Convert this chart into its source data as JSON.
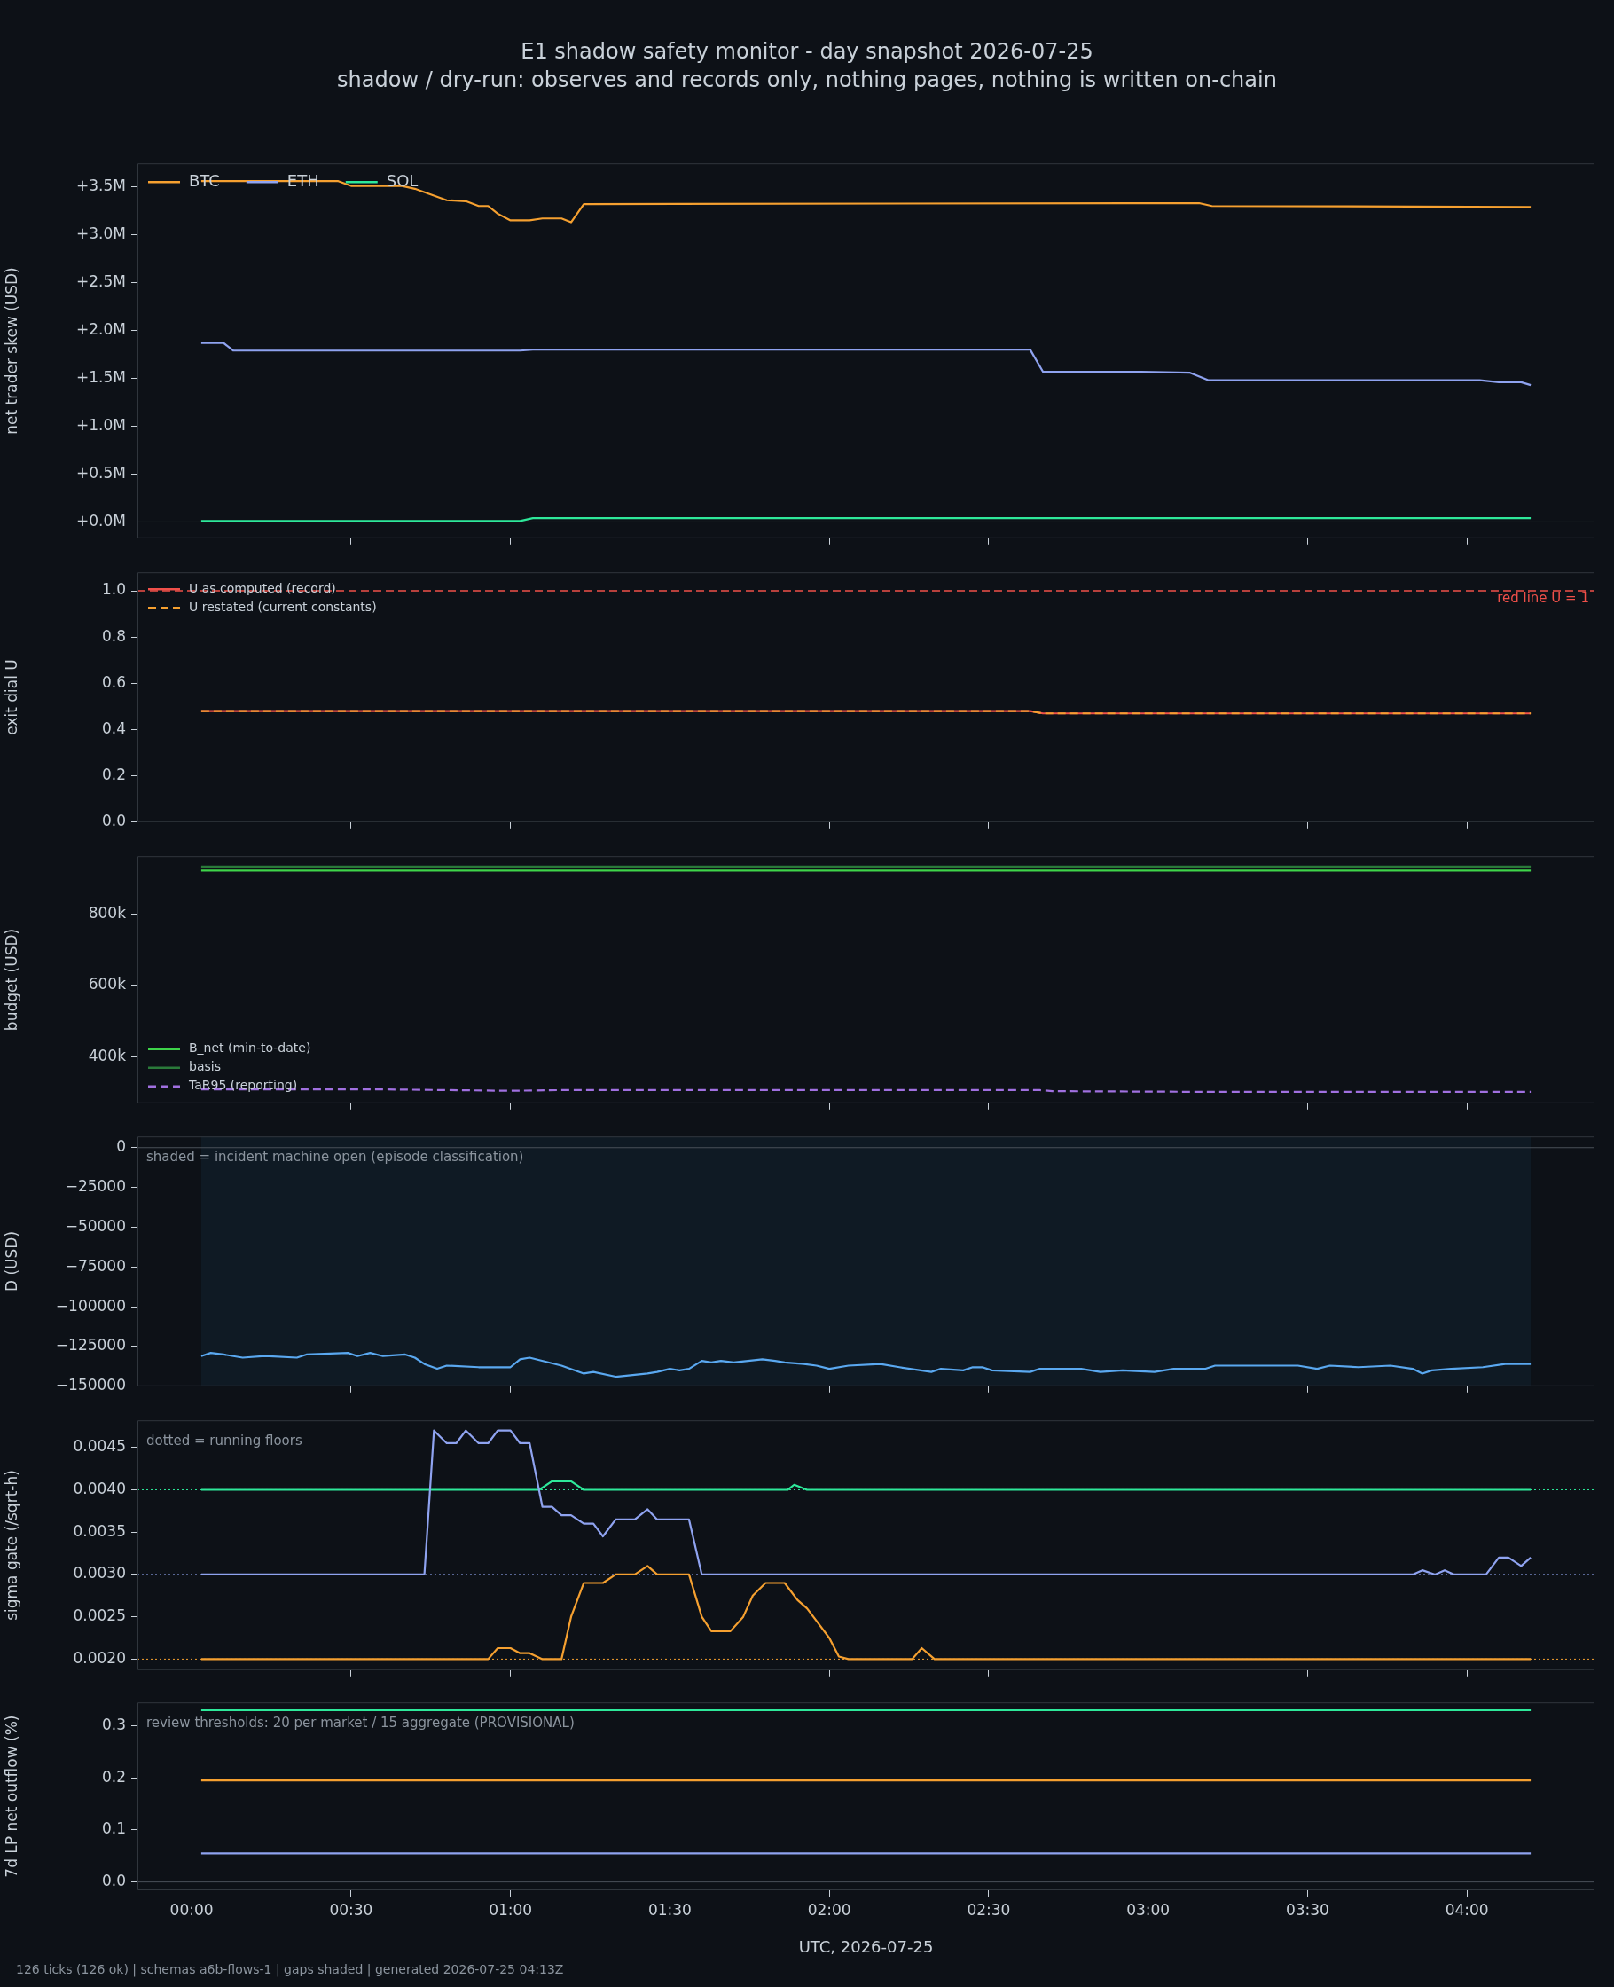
{
  "chart_data": [
    {
      "type": "line",
      "title": "E1 shadow safety monitor - day snapshot 2026-07-25",
      "subtitle": "shadow / dry-run: observes and records only, nothing pages, nothing is written on-chain",
      "ylabel": "net trader skew (USD)",
      "xlim": [
        -0.17,
        4.4
      ],
      "xticks": [
        {
          "value": 0,
          "label": null
        },
        {
          "value": 0.5,
          "label": null
        },
        {
          "value": 1,
          "label": null
        },
        {
          "value": 1.5,
          "label": null
        },
        {
          "value": 2,
          "label": null
        },
        {
          "value": 2.5,
          "label": null
        },
        {
          "value": 3,
          "label": null
        },
        {
          "value": 3.5,
          "label": null
        },
        {
          "value": 4,
          "label": null
        }
      ],
      "ylim": [
        -0.17,
        3.745
      ],
      "yticks": [
        {
          "value": 0,
          "label": "+0.0M"
        },
        {
          "value": 0.5,
          "label": "+0.5M"
        },
        {
          "value": 1,
          "label": "+1.0M"
        },
        {
          "value": 1.5,
          "label": "+1.5M"
        },
        {
          "value": 2,
          "label": "+2.0M"
        },
        {
          "value": 2.5,
          "label": "+2.5M"
        },
        {
          "value": 3,
          "label": "+3.0M"
        },
        {
          "value": 3.5,
          "label": "+3.5M"
        }
      ],
      "tick_labels": "y",
      "legend": "top left",
      "ref_lines": [
        {
          "axis": "y",
          "value": 0,
          "color": "#4a5059"
        }
      ],
      "series": [
        {
          "name": "BTC",
          "color": "#f5a030",
          "x": [
            0.03,
            0.46,
            0.5,
            0.66,
            0.7,
            0.75,
            0.8,
            0.86,
            0.9,
            0.93,
            0.96,
            1.0,
            1.06,
            1.1,
            1.16,
            1.19,
            1.23,
            3.16,
            3.2,
            4.2
          ],
          "values": [
            3.56,
            3.56,
            3.51,
            3.51,
            3.48,
            3.42,
            3.36,
            3.35,
            3.3,
            3.3,
            3.22,
            3.15,
            3.15,
            3.17,
            3.17,
            3.13,
            3.32,
            3.33,
            3.3,
            3.29
          ]
        },
        {
          "name": "ETH",
          "color": "#8fa3f0",
          "x": [
            0.03,
            0.1,
            0.13,
            1.03,
            1.07,
            2.63,
            2.67,
            2.98,
            3.13,
            3.19,
            4.04,
            4.1,
            4.17,
            4.2
          ],
          "values": [
            1.87,
            1.87,
            1.79,
            1.79,
            1.8,
            1.8,
            1.57,
            1.57,
            1.56,
            1.48,
            1.48,
            1.46,
            1.46,
            1.43
          ]
        },
        {
          "name": "SOL",
          "color": "#2ee89a",
          "x": [
            0.03,
            1.03,
            1.07,
            4.2
          ],
          "values": [
            0.01,
            0.01,
            0.04,
            0.04
          ]
        }
      ]
    },
    {
      "type": "line",
      "ylabel": "exit dial U",
      "xlim": [
        -0.17,
        4.4
      ],
      "xticks": [
        {
          "value": 0,
          "label": null
        },
        {
          "value": 0.5,
          "label": null
        },
        {
          "value": 1,
          "label": null
        },
        {
          "value": 1.5,
          "label": null
        },
        {
          "value": 2,
          "label": null
        },
        {
          "value": 2.5,
          "label": null
        },
        {
          "value": 3,
          "label": null
        },
        {
          "value": 3.5,
          "label": null
        },
        {
          "value": 4,
          "label": null
        }
      ],
      "ylim": [
        0,
        1.08
      ],
      "yticks": [
        {
          "value": 0,
          "label": "0.0"
        },
        {
          "value": 0.2,
          "label": "0.2"
        },
        {
          "value": 0.4,
          "label": "0.4"
        },
        {
          "value": 0.6,
          "label": "0.6"
        },
        {
          "value": 0.8,
          "label": "0.8"
        },
        {
          "value": 1,
          "label": "1.0"
        }
      ],
      "tick_labels": "y",
      "legend": "top left",
      "ref_lines": [
        {
          "axis": "y",
          "value": 1,
          "label": "red line U = 1",
          "color": "#f0504a",
          "line_style": "dashed"
        }
      ],
      "series": [
        {
          "name": "U as computed (record)",
          "color": "#f0504a",
          "x": [
            0.03,
            0.1,
            2.63,
            2.67,
            4.2
          ],
          "values": [
            0.48,
            0.48,
            0.48,
            0.47,
            0.47
          ]
        },
        {
          "name": "U restated (current constants)",
          "color": "#f5a030",
          "line_style": "dashed",
          "x": [
            0.03,
            0.1,
            2.63,
            2.67,
            4.2
          ],
          "values": [
            0.48,
            0.48,
            0.48,
            0.47,
            0.47
          ]
        }
      ]
    },
    {
      "type": "line",
      "ylabel": "budget (USD)",
      "xlim": [
        -0.17,
        4.4
      ],
      "xticks": [
        {
          "value": 0,
          "label": null
        },
        {
          "value": 0.5,
          "label": null
        },
        {
          "value": 1,
          "label": null
        },
        {
          "value": 1.5,
          "label": null
        },
        {
          "value": 2,
          "label": null
        },
        {
          "value": 2.5,
          "label": null
        },
        {
          "value": 3,
          "label": null
        },
        {
          "value": 3.5,
          "label": null
        },
        {
          "value": 4,
          "label": null
        }
      ],
      "ylim": [
        269,
        962
      ],
      "yticks": [
        {
          "value": 400,
          "label": "400k"
        },
        {
          "value": 600,
          "label": "600k"
        },
        {
          "value": 800,
          "label": "800k"
        }
      ],
      "tick_labels": "y",
      "legend": "bottom left",
      "series": [
        {
          "name": "B_net (min-to-date)",
          "color": "#3ed44a",
          "x": [
            0.03,
            4.2
          ],
          "values": [
            922,
            922
          ]
        },
        {
          "name": "basis",
          "color": "#2a7a3a",
          "x": [
            0.03,
            4.2
          ],
          "values": [
            933,
            933
          ]
        },
        {
          "name": "TaR95 (reporting)",
          "color": "#a070e0",
          "line_style": "dashed",
          "x": [
            0.03,
            0.6,
            1.0,
            1.16,
            2.66,
            2.7,
            3.2,
            4.2
          ],
          "values": [
            308,
            308,
            304,
            306,
            306,
            303,
            301,
            301
          ]
        }
      ]
    },
    {
      "type": "line",
      "ylabel": "D (USD)",
      "annotations": [
        "shaded = incident machine open (episode classification)"
      ],
      "xlim": [
        -0.17,
        4.4
      ],
      "xticks": [
        {
          "value": 0,
          "label": null
        },
        {
          "value": 0.5,
          "label": null
        },
        {
          "value": 1,
          "label": null
        },
        {
          "value": 1.5,
          "label": null
        },
        {
          "value": 2,
          "label": null
        },
        {
          "value": 2.5,
          "label": null
        },
        {
          "value": 3,
          "label": null
        },
        {
          "value": 3.5,
          "label": null
        },
        {
          "value": 4,
          "label": null
        }
      ],
      "ylim": [
        -150000,
        7000
      ],
      "yticks": [
        {
          "value": -150000,
          "label": "−150000"
        },
        {
          "value": -125000,
          "label": "−125000"
        },
        {
          "value": -100000,
          "label": "−100000"
        },
        {
          "value": -75000,
          "label": "−75000"
        },
        {
          "value": -50000,
          "label": "−50000"
        },
        {
          "value": -25000,
          "label": "−25000"
        },
        {
          "value": 0,
          "label": "0"
        }
      ],
      "tick_labels": "y",
      "bands": [
        {
          "axis": "x",
          "from": 0.03,
          "to": 4.2,
          "color": "#0f1a24"
        }
      ],
      "ref_lines": [
        {
          "axis": "y",
          "value": 0,
          "color": "#4a5059"
        }
      ],
      "series": [
        {
          "color": "#5aa8f0",
          "x": [
            0.03,
            0.06,
            0.1,
            0.16,
            0.23,
            0.33,
            0.36,
            0.49,
            0.52,
            0.56,
            0.6,
            0.67,
            0.7,
            0.73,
            0.77,
            0.8,
            0.9,
            1.0,
            1.03,
            1.06,
            1.16,
            1.23,
            1.26,
            1.33,
            1.43,
            1.46,
            1.5,
            1.53,
            1.56,
            1.6,
            1.63,
            1.66,
            1.7,
            1.79,
            1.83,
            1.86,
            1.92,
            1.96,
            2.0,
            2.06,
            2.16,
            2.22,
            2.32,
            2.35,
            2.42,
            2.45,
            2.48,
            2.51,
            2.63,
            2.66,
            2.79,
            2.85,
            2.92,
            3.02,
            3.08,
            3.18,
            3.21,
            3.47,
            3.53,
            3.57,
            3.66,
            3.76,
            3.83,
            3.86,
            3.89,
            3.95,
            4.05,
            4.12,
            4.15,
            4.2
          ],
          "values": [
            -131000,
            -129000,
            -130000,
            -132000,
            -131000,
            -132000,
            -130000,
            -129000,
            -131000,
            -129000,
            -131000,
            -130000,
            -132000,
            -136000,
            -139000,
            -137000,
            -138000,
            -138000,
            -133000,
            -132000,
            -137000,
            -142000,
            -141000,
            -144000,
            -142000,
            -141000,
            -139000,
            -140000,
            -139000,
            -134000,
            -135000,
            -134000,
            -135000,
            -133000,
            -134000,
            -135000,
            -136000,
            -137000,
            -139000,
            -137000,
            -136000,
            -138000,
            -141000,
            -139000,
            -140000,
            -138000,
            -138000,
            -140000,
            -141000,
            -139000,
            -139000,
            -141000,
            -140000,
            -141000,
            -139000,
            -139000,
            -137000,
            -137000,
            -139000,
            -137000,
            -138000,
            -137000,
            -139000,
            -142000,
            -140000,
            -139000,
            -138000,
            -136000,
            -136000,
            -136000
          ]
        }
      ]
    },
    {
      "type": "line",
      "ylabel": "sigma gate (/sqrt-h)",
      "annotations": [
        "dotted = running floors"
      ],
      "xlim": [
        -0.17,
        4.4
      ],
      "xticks": [
        {
          "value": 0,
          "label": null
        },
        {
          "value": 0.5,
          "label": null
        },
        {
          "value": 1,
          "label": null
        },
        {
          "value": 1.5,
          "label": null
        },
        {
          "value": 2,
          "label": null
        },
        {
          "value": 2.5,
          "label": null
        },
        {
          "value": 3,
          "label": null
        },
        {
          "value": 3.5,
          "label": null
        },
        {
          "value": 4,
          "label": null
        }
      ],
      "ylim": [
        0.00187,
        0.00482
      ],
      "yticks": [
        {
          "value": 0.002,
          "label": "0.0020"
        },
        {
          "value": 0.0025,
          "label": "0.0025"
        },
        {
          "value": 0.003,
          "label": "0.0030"
        },
        {
          "value": 0.0035,
          "label": "0.0035"
        },
        {
          "value": 0.004,
          "label": "0.0040"
        },
        {
          "value": 0.0045,
          "label": "0.0045"
        }
      ],
      "tick_labels": "y",
      "ref_lines": [
        {
          "axis": "y",
          "value": 0.004,
          "color": "#2ee89a",
          "line_style": "dotted"
        },
        {
          "axis": "y",
          "value": 0.003,
          "color": "#8fa3f0",
          "line_style": "dotted"
        },
        {
          "axis": "y",
          "value": 0.002,
          "color": "#f5a030",
          "line_style": "dotted"
        }
      ],
      "series": [
        {
          "color": "#2ee89a",
          "x": [
            0.03,
            1.09,
            1.13,
            1.19,
            1.23,
            1.87,
            1.89,
            1.93,
            4.2
          ],
          "values": [
            0.004,
            0.004,
            0.0041,
            0.0041,
            0.004,
            0.004,
            0.00406,
            0.004,
            0.004
          ]
        },
        {
          "color": "#8fa3f0",
          "x": [
            0.03,
            0.73,
            0.76,
            0.8,
            0.83,
            0.86,
            0.9,
            0.93,
            0.96,
            1.0,
            1.03,
            1.06,
            1.1,
            1.13,
            1.16,
            1.19,
            1.23,
            1.26,
            1.29,
            1.33,
            1.39,
            1.43,
            1.46,
            1.56,
            1.6,
            3.83,
            3.86,
            3.9,
            3.93,
            3.96,
            4.06,
            4.1,
            4.13,
            4.17,
            4.2
          ],
          "values": [
            0.003,
            0.003,
            0.0047,
            0.00455,
            0.00455,
            0.0047,
            0.00455,
            0.00455,
            0.0047,
            0.0047,
            0.00455,
            0.00455,
            0.0038,
            0.0038,
            0.0037,
            0.0037,
            0.0036,
            0.0036,
            0.00345,
            0.00365,
            0.00365,
            0.00377,
            0.00365,
            0.00365,
            0.003,
            0.003,
            0.00305,
            0.003,
            0.00305,
            0.003,
            0.003,
            0.0032,
            0.0032,
            0.0031,
            0.0032
          ]
        },
        {
          "color": "#f5a030",
          "x": [
            0.03,
            0.93,
            0.96,
            1.0,
            1.03,
            1.06,
            1.1,
            1.16,
            1.19,
            1.23,
            1.29,
            1.33,
            1.39,
            1.43,
            1.46,
            1.56,
            1.6,
            1.63,
            1.69,
            1.73,
            1.76,
            1.8,
            1.83,
            1.86,
            1.9,
            1.93,
            1.96,
            2.0,
            2.03,
            2.06,
            2.26,
            2.29,
            2.33,
            4.2
          ],
          "values": [
            0.002,
            0.002,
            0.00213,
            0.00213,
            0.00207,
            0.00207,
            0.002,
            0.002,
            0.0025,
            0.0029,
            0.0029,
            0.003,
            0.003,
            0.0031,
            0.003,
            0.003,
            0.0025,
            0.00233,
            0.00233,
            0.0025,
            0.00275,
            0.0029,
            0.0029,
            0.0029,
            0.0027,
            0.0026,
            0.00245,
            0.00225,
            0.00203,
            0.002,
            0.002,
            0.00213,
            0.002,
            0.002
          ]
        }
      ]
    },
    {
      "type": "line",
      "ylabel": "7d LP net outflow (%)",
      "xlabel": "UTC, 2026-07-25",
      "annotations": [
        "review thresholds: 20 per market / 15 aggregate (PROVISIONAL)",
        "126 ticks (126 ok) | schemas a6b-flows-1 | gaps shaded | generated 2026-07-25 04:13Z"
      ],
      "xlim": [
        -0.17,
        4.4
      ],
      "xticks": [
        {
          "value": 0,
          "label": "00:00"
        },
        {
          "value": 0.5,
          "label": "00:30"
        },
        {
          "value": 1,
          "label": "01:00"
        },
        {
          "value": 1.5,
          "label": "01:30"
        },
        {
          "value": 2,
          "label": "02:00"
        },
        {
          "value": 2.5,
          "label": "02:30"
        },
        {
          "value": 3,
          "label": "03:00"
        },
        {
          "value": 3.5,
          "label": "03:30"
        },
        {
          "value": 4,
          "label": "04:00"
        }
      ],
      "ylim": [
        -0.016,
        0.345
      ],
      "yticks": [
        {
          "value": 0,
          "label": "0.0"
        },
        {
          "value": 0.1,
          "label": "0.1"
        },
        {
          "value": 0.2,
          "label": "0.2"
        },
        {
          "value": 0.3,
          "label": "0.3"
        }
      ],
      "ref_lines": [
        {
          "axis": "y",
          "value": 0,
          "color": "#4a5059"
        }
      ],
      "series": [
        {
          "color": "#2ee89a",
          "x": [
            0.03,
            4.2
          ],
          "values": [
            0.33,
            0.33
          ]
        },
        {
          "color": "#f5a030",
          "x": [
            0.03,
            4.2
          ],
          "values": [
            0.195,
            0.195
          ]
        },
        {
          "color": "#8fa3f0",
          "x": [
            0.03,
            4.2
          ],
          "values": [
            0.055,
            0.055
          ]
        }
      ]
    }
  ]
}
